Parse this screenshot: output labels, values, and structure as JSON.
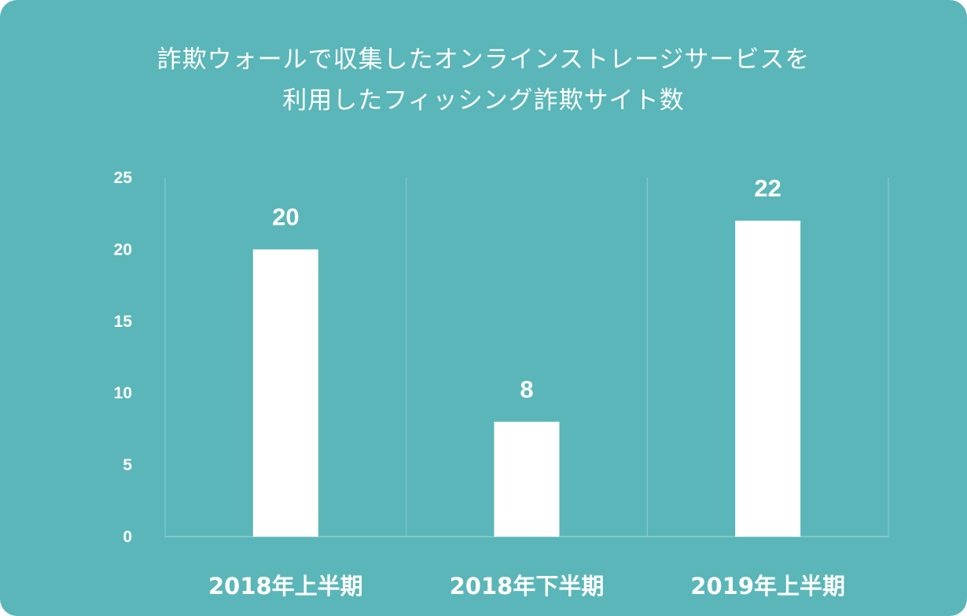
{
  "chart_data": {
    "type": "bar",
    "title_lines": [
      "詐欺ウォールで収集したオンラインストレージサービスを",
      "利用したフィッシング詐欺サイト数"
    ],
    "categories": [
      "2018年上半期",
      "2018年下半期",
      "2019年上半期"
    ],
    "values": [
      20,
      8,
      22
    ],
    "ylim": [
      0,
      25
    ],
    "yticks": [
      0,
      5,
      10,
      15,
      20,
      25
    ],
    "grid": "vertical separators between categories",
    "colors": {
      "background": "#5ab6b8",
      "bar": "#ffffff",
      "text": "#ffffff",
      "grid": "#8fcdcf"
    }
  }
}
